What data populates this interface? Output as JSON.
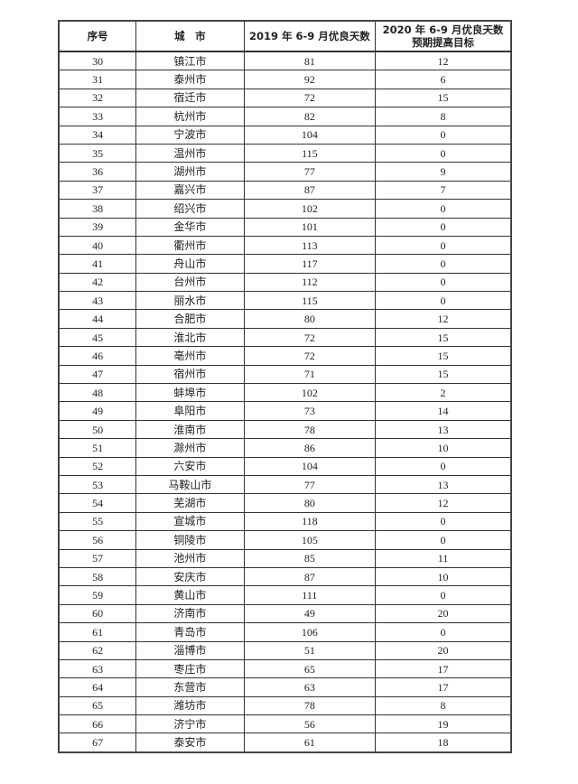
{
  "table": {
    "headers": [
      "序号",
      "城　市",
      "2019 年 6-9 月优良天数",
      "2020 年 6-9 月优良天数\n预期提高目标"
    ],
    "header_last_line1": "2020 年 6-9 月优良天数",
    "header_last_line2": "预期提高目标",
    "rows": [
      [
        "30",
        "镇江市",
        "81",
        "12"
      ],
      [
        "31",
        "泰州市",
        "92",
        "6"
      ],
      [
        "32",
        "宿迁市",
        "72",
        "15"
      ],
      [
        "33",
        "杭州市",
        "82",
        "8"
      ],
      [
        "34",
        "宁波市",
        "104",
        "0"
      ],
      [
        "35",
        "温州市",
        "115",
        "0"
      ],
      [
        "36",
        "湖州市",
        "77",
        "9"
      ],
      [
        "37",
        "嘉兴市",
        "87",
        "7"
      ],
      [
        "38",
        "绍兴市",
        "102",
        "0"
      ],
      [
        "39",
        "金华市",
        "101",
        "0"
      ],
      [
        "40",
        "衢州市",
        "113",
        "0"
      ],
      [
        "41",
        "舟山市",
        "117",
        "0"
      ],
      [
        "42",
        "台州市",
        "112",
        "0"
      ],
      [
        "43",
        "丽水市",
        "115",
        "0"
      ],
      [
        "44",
        "合肥市",
        "80",
        "12"
      ],
      [
        "45",
        "淮北市",
        "72",
        "15"
      ],
      [
        "46",
        "亳州市",
        "72",
        "15"
      ],
      [
        "47",
        "宿州市",
        "71",
        "15"
      ],
      [
        "48",
        "蚌埠市",
        "102",
        "2"
      ],
      [
        "49",
        "阜阳市",
        "73",
        "14"
      ],
      [
        "50",
        "淮南市",
        "78",
        "13"
      ],
      [
        "51",
        "滁州市",
        "86",
        "10"
      ],
      [
        "52",
        "六安市",
        "104",
        "0"
      ],
      [
        "53",
        "马鞍山市",
        "77",
        "13"
      ],
      [
        "54",
        "芜湖市",
        "80",
        "12"
      ],
      [
        "55",
        "宣城市",
        "118",
        "0"
      ],
      [
        "56",
        "铜陵市",
        "105",
        "0"
      ],
      [
        "57",
        "池州市",
        "85",
        "11"
      ],
      [
        "58",
        "安庆市",
        "87",
        "10"
      ],
      [
        "59",
        "黄山市",
        "111",
        "0"
      ],
      [
        "60",
        "济南市",
        "49",
        "20"
      ],
      [
        "61",
        "青岛市",
        "106",
        "0"
      ],
      [
        "62",
        "淄博市",
        "51",
        "20"
      ],
      [
        "63",
        "枣庄市",
        "65",
        "17"
      ],
      [
        "64",
        "东营市",
        "63",
        "17"
      ],
      [
        "65",
        "潍坊市",
        "78",
        "8"
      ],
      [
        "66",
        "济宁市",
        "56",
        "19"
      ],
      [
        "67",
        "泰安市",
        "61",
        "18"
      ]
    ]
  }
}
